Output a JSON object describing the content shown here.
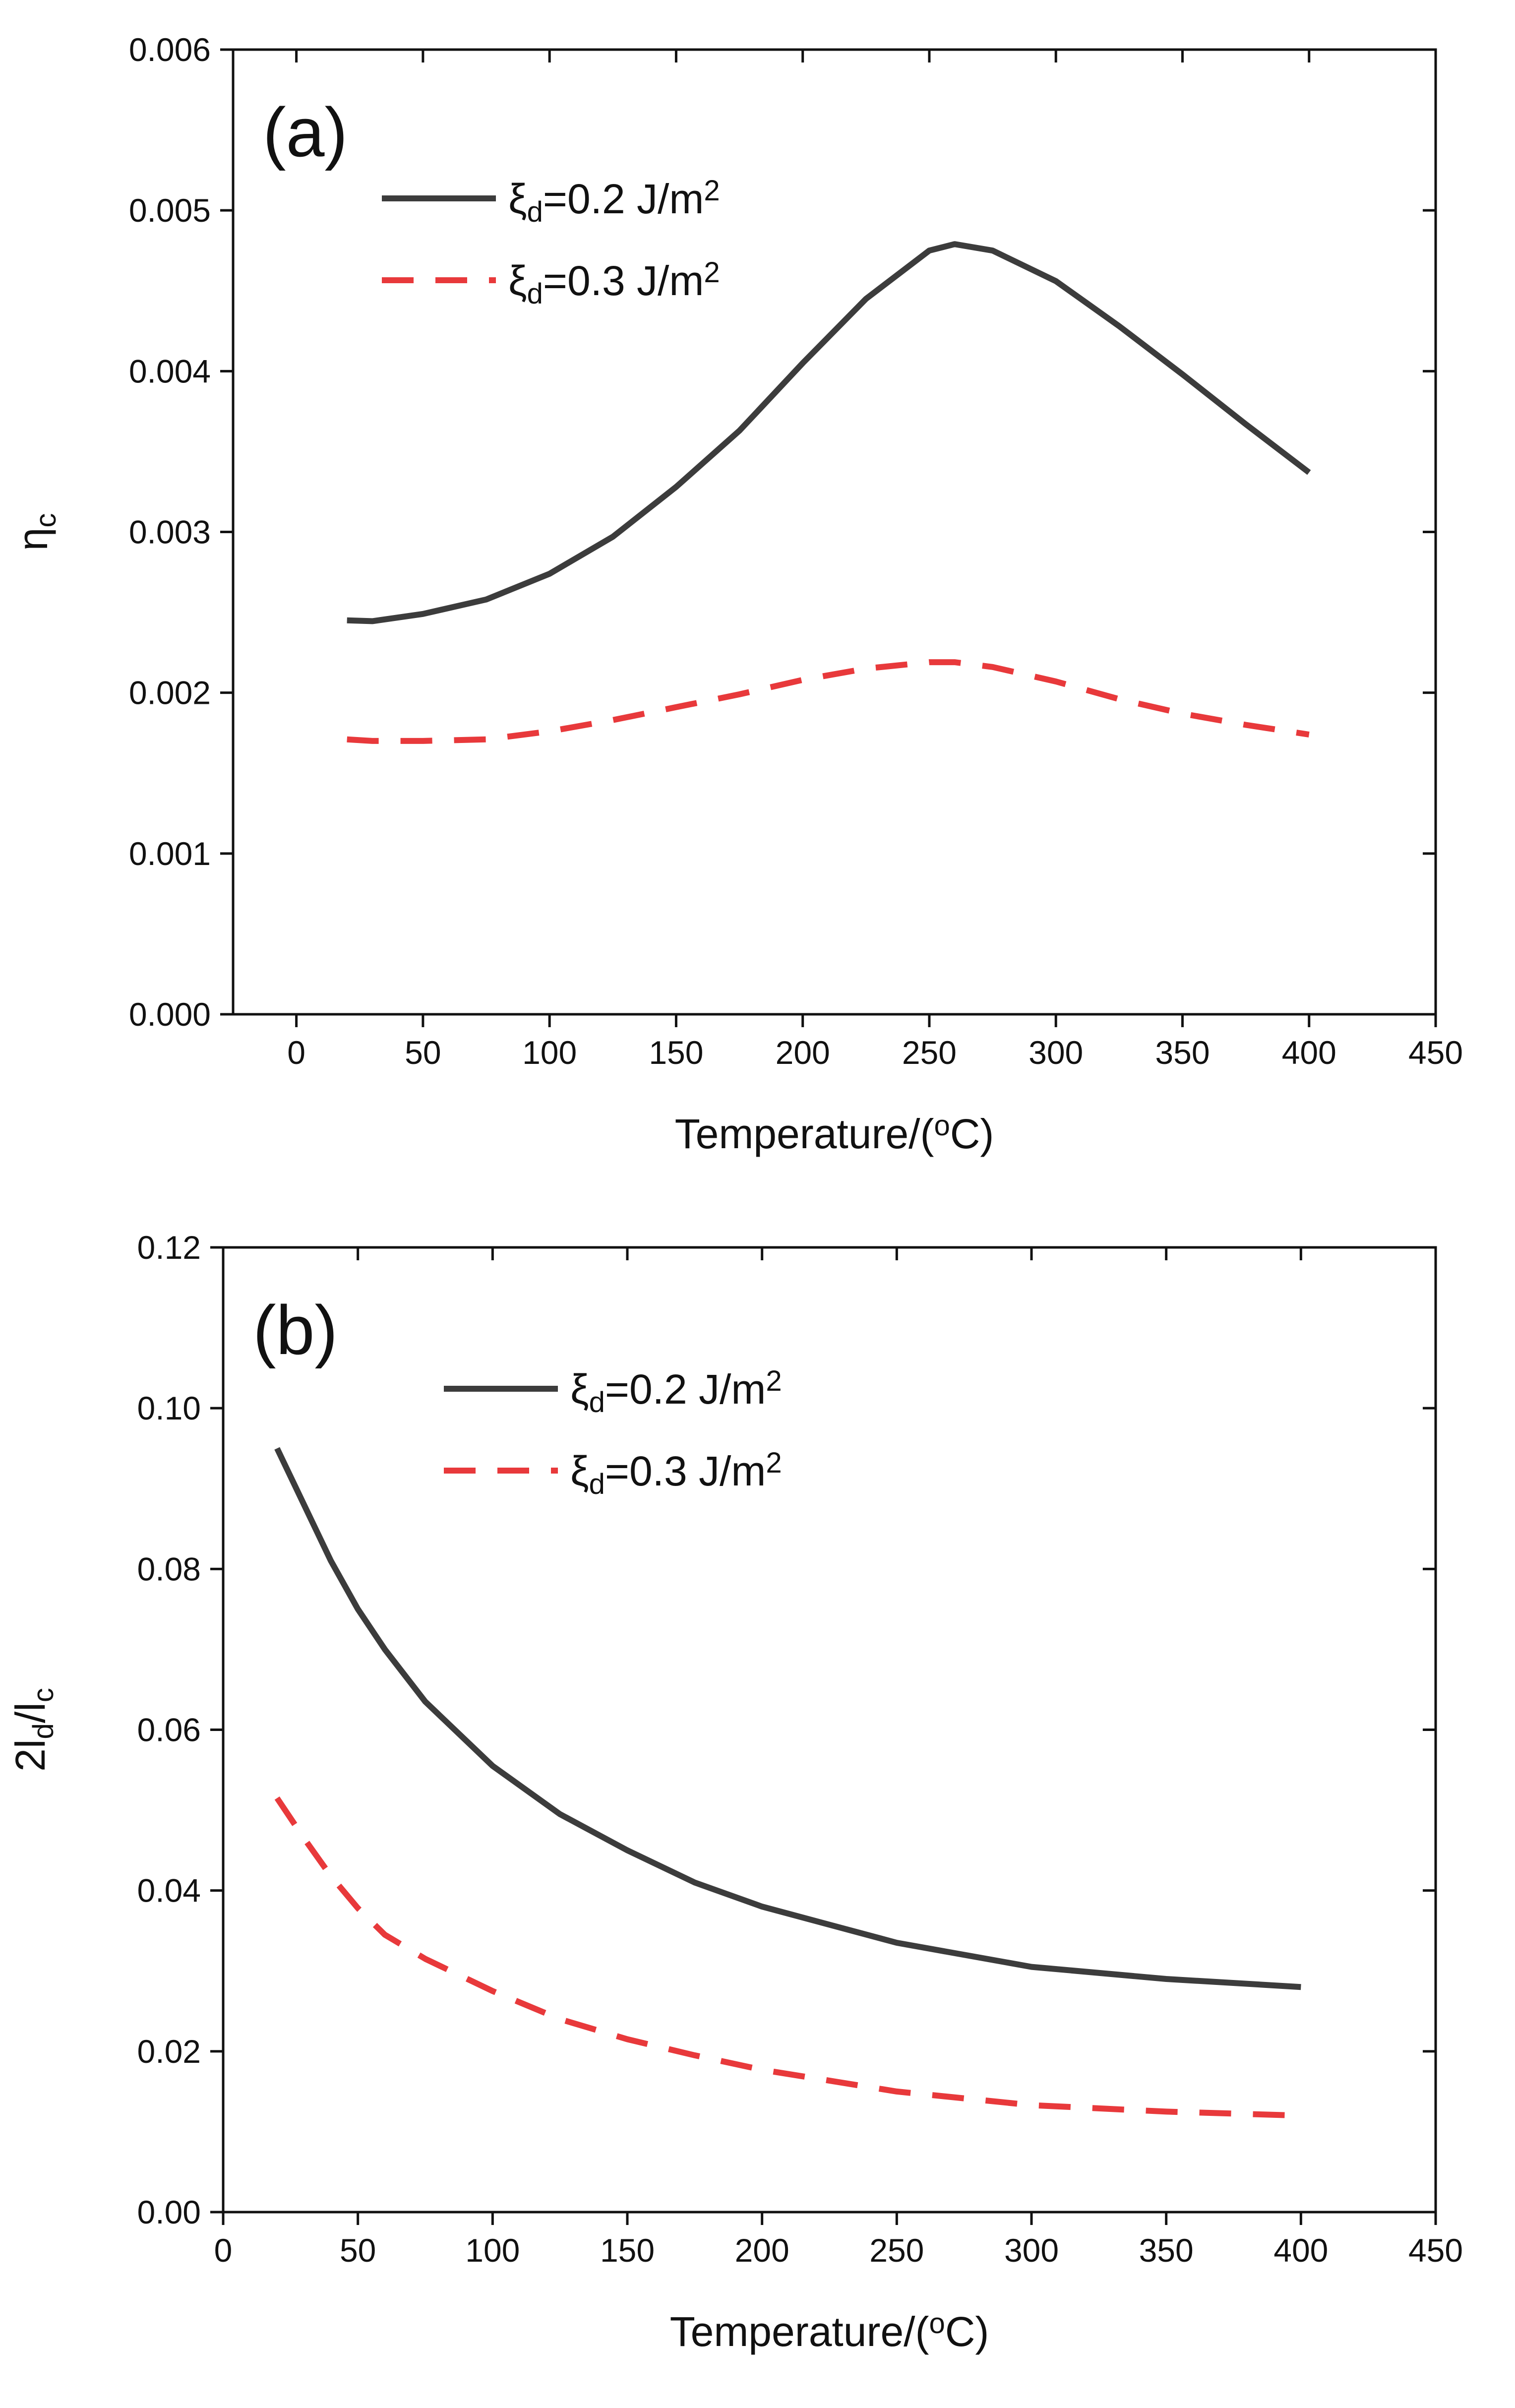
{
  "chart_data": [
    {
      "type": "line",
      "panel_label": "(a)",
      "xlabel": "Temperature/(",
      "xlabel_sup": "o",
      "xlabel_end": "C)",
      "ylabel": "η",
      "ylabel_sub": "c",
      "xlim": [
        -25,
        450
      ],
      "ylim": [
        0,
        0.006
      ],
      "xticks": [
        0,
        50,
        100,
        150,
        200,
        250,
        300,
        350,
        400,
        450
      ],
      "yticks": [
        0.0,
        0.001,
        0.002,
        0.003,
        0.004,
        0.005,
        0.006
      ],
      "ytick_decimals": 3,
      "legend_position": "top-left",
      "series": [
        {
          "name": "ξd=0.2 J/m2",
          "legend": {
            "symbol": "ξ",
            "sub": "d",
            "text": "=0.2 J/m",
            "sup": "2"
          },
          "color": "#3c3c3c",
          "style": "solid",
          "x": [
            20,
            30,
            50,
            75,
            100,
            125,
            150,
            175,
            200,
            225,
            250,
            260,
            275,
            300,
            325,
            350,
            375,
            400
          ],
          "y": [
            0.00245,
            0.002445,
            0.00249,
            0.00258,
            0.00274,
            0.00297,
            0.00328,
            0.00363,
            0.00405,
            0.00445,
            0.00475,
            0.00479,
            0.00475,
            0.00456,
            0.00428,
            0.00398,
            0.00367,
            0.00337
          ]
        },
        {
          "name": "ξd=0.3 J/m2",
          "legend": {
            "symbol": "ξ",
            "sub": "d",
            "text": "=0.3 J/m",
            "sup": "2"
          },
          "color": "#e8393b",
          "style": "dashed",
          "x": [
            20,
            30,
            50,
            75,
            100,
            125,
            150,
            175,
            200,
            225,
            250,
            260,
            275,
            300,
            325,
            350,
            375,
            400
          ],
          "y": [
            0.00171,
            0.0017,
            0.0017,
            0.00171,
            0.00176,
            0.00183,
            0.00191,
            0.00199,
            0.00208,
            0.00215,
            0.00219,
            0.00219,
            0.00216,
            0.00207,
            0.00196,
            0.00187,
            0.0018,
            0.00174
          ]
        }
      ]
    },
    {
      "type": "line",
      "panel_label": "(b)",
      "xlabel": "Temperature/(",
      "xlabel_sup": "o",
      "xlabel_end": "C)",
      "ylabel": "2l",
      "ylabel_sub": "d",
      "ylabel_mid": "/l",
      "ylabel_sub2": "c",
      "xlim": [
        0,
        450
      ],
      "ylim": [
        0,
        0.12
      ],
      "xticks": [
        0,
        50,
        100,
        150,
        200,
        250,
        300,
        350,
        400,
        450
      ],
      "yticks": [
        0.0,
        0.02,
        0.04,
        0.06,
        0.08,
        0.1,
        0.12
      ],
      "ytick_decimals": 2,
      "legend_position": "top-center",
      "series": [
        {
          "name": "ξd=0.2 J/m2",
          "legend": {
            "symbol": "ξ",
            "sub": "d",
            "text": "=0.2 J/m",
            "sup": "2"
          },
          "color": "#3c3c3c",
          "style": "solid",
          "x": [
            20,
            30,
            40,
            50,
            60,
            75,
            100,
            125,
            150,
            175,
            200,
            250,
            300,
            350,
            400
          ],
          "y": [
            0.095,
            0.088,
            0.081,
            0.075,
            0.07,
            0.0635,
            0.0555,
            0.0495,
            0.045,
            0.041,
            0.038,
            0.0335,
            0.0305,
            0.029,
            0.028
          ]
        },
        {
          "name": "ξd=0.3 J/m2",
          "legend": {
            "symbol": "ξ",
            "sub": "d",
            "text": "=0.3 J/m",
            "sup": "2"
          },
          "color": "#e8393b",
          "style": "dashed",
          "x": [
            20,
            30,
            40,
            50,
            60,
            75,
            100,
            125,
            150,
            175,
            200,
            250,
            300,
            350,
            400
          ],
          "y": [
            0.0515,
            0.0465,
            0.0418,
            0.0378,
            0.0345,
            0.0315,
            0.0275,
            0.024,
            0.0215,
            0.0195,
            0.0177,
            0.015,
            0.0133,
            0.0125,
            0.012
          ]
        }
      ]
    }
  ]
}
